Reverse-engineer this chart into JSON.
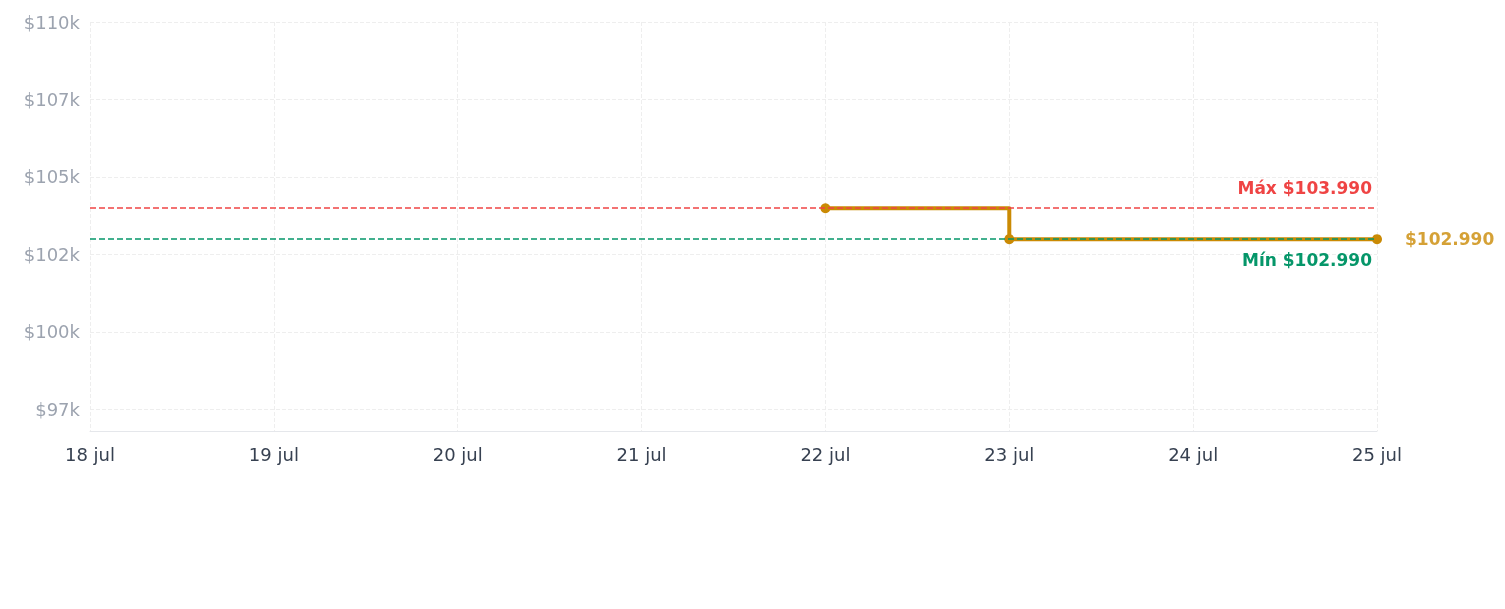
{
  "chart_data": {
    "type": "step",
    "x": [
      "--07-22",
      "--07-23",
      "--07-25"
    ],
    "series": [
      {
        "color": "#ca8a04",
        "values": [
          103990,
          102990,
          102990
        ]
      }
    ],
    "xlim": [
      "--07-18",
      "--07-25"
    ],
    "xticks": [
      {
        "value": "--07-18",
        "label": "18 jul"
      },
      {
        "value": "--07-19",
        "label": "19 jul"
      },
      {
        "value": "--07-20",
        "label": "20 jul"
      },
      {
        "value": "--07-21",
        "label": "21 jul"
      },
      {
        "value": "--07-22",
        "label": "22 jul"
      },
      {
        "value": "--07-23",
        "label": "23 jul"
      },
      {
        "value": "--07-24",
        "label": "24 jul"
      },
      {
        "value": "--07-25",
        "label": "25 jul"
      }
    ],
    "ylim": [
      96800,
      110000
    ],
    "yticks": [
      {
        "value": 97500,
        "label": "$97k"
      },
      {
        "value": 100000,
        "label": "$100k"
      },
      {
        "value": 102500,
        "label": "$102k"
      },
      {
        "value": 105000,
        "label": "$105k"
      },
      {
        "value": 107500,
        "label": "$107k"
      },
      {
        "value": 110000,
        "label": "$110k"
      }
    ],
    "ref_lines": [
      {
        "axis": "y",
        "value": 103990,
        "label": "Máx $103.990",
        "color": "#ef4444",
        "line_style": "dashed"
      },
      {
        "axis": "y",
        "value": 102990,
        "label": "Mín $102.990",
        "color": "#059669",
        "line_style": "dashed"
      }
    ],
    "annotations": [
      {
        "text": "$102.990",
        "x": "--07-25",
        "y": 102990
      }
    ],
    "grid": true,
    "marker": "circle",
    "line_style": "solid"
  }
}
